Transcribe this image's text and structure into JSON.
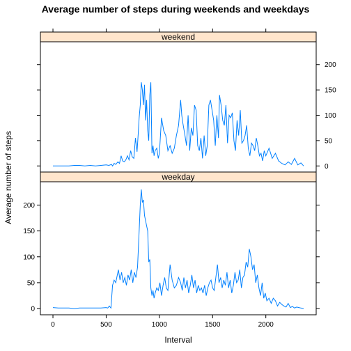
{
  "chart_data": {
    "type": "line",
    "title": "Average number of steps during weekends and weekdays",
    "xlabel": "Interval",
    "ylabel": "Average number of steps",
    "xlim": [
      -118,
      2473
    ],
    "ylim": [
      -12,
      245
    ],
    "x_ticks": [
      0,
      500,
      1000,
      1500,
      2000
    ],
    "y_ticks": [
      0,
      50,
      100,
      150,
      200
    ],
    "line_color": "#0080ff",
    "strip_color": "#ffe5cc",
    "grid": false,
    "panels": [
      {
        "name": "weekend",
        "x": [
          0,
          50,
          100,
          150,
          200,
          250,
          300,
          350,
          400,
          450,
          500,
          525,
          550,
          560,
          575,
          590,
          610,
          625,
          640,
          655,
          670,
          685,
          700,
          715,
          730,
          745,
          760,
          775,
          790,
          800,
          810,
          820,
          830,
          840,
          850,
          860,
          870,
          880,
          890,
          900,
          910,
          920,
          930,
          940,
          950,
          960,
          975,
          990,
          1000,
          1020,
          1040,
          1060,
          1080,
          1100,
          1120,
          1140,
          1160,
          1180,
          1200,
          1210,
          1220,
          1240,
          1255,
          1270,
          1285,
          1300,
          1315,
          1330,
          1345,
          1360,
          1375,
          1390,
          1405,
          1420,
          1435,
          1450,
          1465,
          1480,
          1495,
          1510,
          1525,
          1540,
          1555,
          1565,
          1580,
          1595,
          1610,
          1625,
          1640,
          1655,
          1670,
          1685,
          1700,
          1715,
          1730,
          1745,
          1760,
          1775,
          1790,
          1805,
          1820,
          1835,
          1850,
          1865,
          1880,
          1895,
          1910,
          1925,
          1940,
          1955,
          1970,
          1985,
          2000,
          2030,
          2060,
          2090,
          2120,
          2150,
          2180,
          2210,
          2240,
          2270,
          2300,
          2330,
          2355
        ],
        "y": [
          0,
          0,
          0,
          0,
          1,
          1,
          0,
          1,
          0,
          1,
          2,
          1,
          3,
          0,
          5,
          3,
          8,
          5,
          20,
          10,
          8,
          12,
          20,
          12,
          30,
          18,
          15,
          55,
          28,
          60,
          95,
          120,
          165,
          150,
          120,
          160,
          90,
          130,
          70,
          50,
          140,
          165,
          25,
          40,
          20,
          30,
          35,
          15,
          25,
          95,
          70,
          60,
          30,
          40,
          25,
          35,
          60,
          80,
          130,
          100,
          85,
          60,
          40,
          100,
          30,
          75,
          60,
          120,
          110,
          40,
          30,
          55,
          15,
          60,
          20,
          40,
          120,
          130,
          110,
          90,
          40,
          100,
          55,
          140,
          120,
          90,
          80,
          120,
          45,
          100,
          95,
          105,
          50,
          30,
          90,
          60,
          110,
          45,
          50,
          60,
          80,
          35,
          20,
          45,
          40,
          30,
          55,
          40,
          20,
          25,
          10,
          30,
          20,
          35,
          15,
          25,
          10,
          5,
          2,
          8,
          3,
          15,
          2,
          6,
          0
        ]
      },
      {
        "name": "weekday",
        "x": [
          0,
          50,
          100,
          150,
          200,
          250,
          300,
          350,
          400,
          450,
          500,
          515,
          530,
          545,
          560,
          575,
          590,
          600,
          615,
          630,
          645,
          660,
          675,
          690,
          705,
          720,
          735,
          750,
          765,
          780,
          795,
          810,
          820,
          830,
          840,
          850,
          860,
          870,
          880,
          890,
          900,
          910,
          920,
          930,
          940,
          950,
          960,
          975,
          990,
          1005,
          1020,
          1035,
          1050,
          1065,
          1080,
          1100,
          1120,
          1140,
          1160,
          1180,
          1200,
          1215,
          1230,
          1245,
          1260,
          1275,
          1290,
          1305,
          1320,
          1335,
          1350,
          1365,
          1380,
          1395,
          1410,
          1425,
          1440,
          1455,
          1470,
          1485,
          1500,
          1515,
          1530,
          1545,
          1560,
          1575,
          1590,
          1605,
          1620,
          1635,
          1650,
          1665,
          1680,
          1695,
          1710,
          1725,
          1740,
          1755,
          1770,
          1785,
          1800,
          1815,
          1830,
          1845,
          1860,
          1875,
          1890,
          1905,
          1920,
          1935,
          1950,
          1965,
          1980,
          1995,
          2010,
          2030,
          2050,
          2070,
          2090,
          2110,
          2130,
          2150,
          2170,
          2190,
          2210,
          2230,
          2250,
          2270,
          2290,
          2310,
          2330,
          2355
        ],
        "y": [
          2,
          1,
          1,
          1,
          0,
          1,
          1,
          1,
          1,
          1,
          2,
          1,
          5,
          1,
          45,
          55,
          50,
          60,
          75,
          55,
          70,
          50,
          60,
          45,
          65,
          55,
          75,
          50,
          70,
          60,
          80,
          150,
          200,
          230,
          205,
          210,
          180,
          170,
          160,
          150,
          90,
          95,
          40,
          25,
          35,
          20,
          30,
          40,
          35,
          50,
          25,
          45,
          60,
          40,
          35,
          85,
          55,
          40,
          45,
          60,
          50,
          35,
          60,
          40,
          55,
          30,
          45,
          65,
          40,
          55,
          30,
          45,
          35,
          40,
          30,
          45,
          25,
          40,
          50,
          55,
          40,
          35,
          60,
          85,
          50,
          60,
          40,
          55,
          45,
          70,
          40,
          55,
          30,
          45,
          70,
          50,
          55,
          75,
          40,
          60,
          65,
          90,
          80,
          115,
          100,
          75,
          85,
          50,
          65,
          40,
          25,
          50,
          20,
          30,
          15,
          20,
          10,
          20,
          15,
          5,
          12,
          8,
          5,
          3,
          10,
          2,
          4,
          1,
          3,
          2,
          1,
          0
        ]
      }
    ]
  }
}
